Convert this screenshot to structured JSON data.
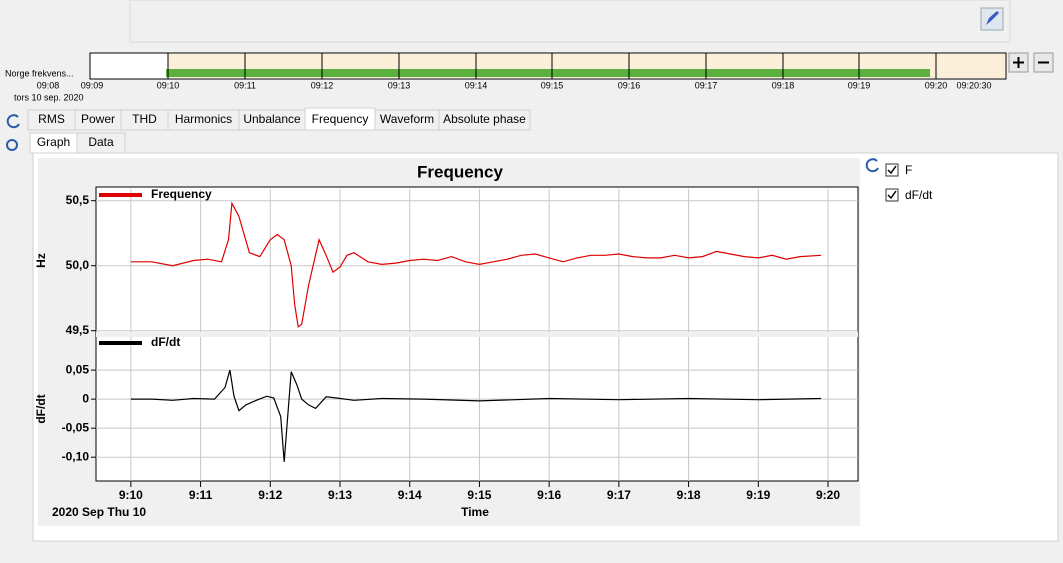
{
  "timeline": {
    "label": "Norge  frekvens...",
    "date": "tors 10 sep. 2020",
    "ticks": [
      "09:08",
      "09:09",
      "09:10",
      "09:11",
      "09:12",
      "09:13",
      "09:14",
      "09:15",
      "09:16",
      "09:17",
      "09:18",
      "09:19",
      "09:20",
      "09:20:30"
    ]
  },
  "tabs": [
    "RMS",
    "Power",
    "THD",
    "Harmonics",
    "Unbalance",
    "Frequency",
    "Waveform",
    "Absolute phase"
  ],
  "subtabs": [
    "Graph",
    "Data"
  ],
  "title": "Frequency",
  "x_label": "Time",
  "date_label": "2020 Sep Thu 10",
  "checkboxes": [
    "F",
    "dF/dt"
  ],
  "chart_data": [
    {
      "type": "line",
      "y_label": "Hz",
      "grid": true,
      "x": [
        550.0,
        550.3,
        550.6,
        550.9,
        551.1,
        551.3,
        551.4,
        551.45,
        551.55,
        551.7,
        551.85,
        552.0,
        552.1,
        552.2,
        552.3,
        552.35,
        552.4,
        552.45,
        552.55,
        552.7,
        552.8,
        552.9,
        553.0,
        553.1,
        553.2,
        553.4,
        553.6,
        553.8,
        554.0,
        554.2,
        554.4,
        554.6,
        554.8,
        555.0,
        555.2,
        555.4,
        555.6,
        555.8,
        556.0,
        556.2,
        556.4,
        556.6,
        556.8,
        557.0,
        557.2,
        557.4,
        557.6,
        557.8,
        558.0,
        558.2,
        558.4,
        558.6,
        558.8,
        559.0,
        559.2,
        559.4,
        559.6,
        559.9
      ],
      "series": [
        {
          "name": "Frequency",
          "color": "#e00000",
          "values": [
            50.03,
            50.03,
            50.0,
            50.04,
            50.05,
            50.03,
            50.2,
            50.48,
            50.38,
            50.1,
            50.07,
            50.2,
            50.24,
            50.2,
            50.0,
            49.7,
            49.53,
            49.55,
            49.85,
            50.2,
            50.08,
            49.95,
            49.99,
            50.08,
            50.1,
            50.03,
            50.01,
            50.02,
            50.04,
            50.05,
            50.04,
            50.07,
            50.03,
            50.01,
            50.03,
            50.05,
            50.08,
            50.09,
            50.06,
            50.03,
            50.06,
            50.08,
            50.08,
            50.09,
            50.07,
            50.06,
            50.06,
            50.08,
            50.06,
            50.07,
            50.11,
            50.09,
            50.07,
            50.06,
            50.08,
            50.05,
            50.07,
            50.08
          ]
        }
      ],
      "xlim": [
        549.5,
        560.43
      ],
      "ylim": [
        49.49,
        50.59
      ],
      "yticks": [
        {
          "value": 49.5,
          "label": "49,5"
        },
        {
          "value": 50,
          "label": "50,0"
        },
        {
          "value": 50.5,
          "label": "50,5"
        }
      ]
    },
    {
      "type": "line",
      "y_label": "dF/dt",
      "grid": true,
      "x": [
        550.0,
        550.3,
        550.6,
        550.9,
        551.2,
        551.35,
        551.42,
        551.48,
        551.55,
        551.65,
        551.8,
        551.95,
        552.05,
        552.15,
        552.2,
        552.25,
        552.3,
        552.38,
        552.45,
        552.55,
        552.65,
        552.8,
        552.95,
        553.2,
        553.6,
        554.2,
        555.0,
        556.0,
        557.0,
        558.0,
        559.0,
        559.9
      ],
      "series": [
        {
          "name": "dF/dt",
          "color": "#000000",
          "values": [
            0,
            0,
            -0.002,
            0.001,
            0,
            0.02,
            0.05,
            0.005,
            -0.02,
            -0.01,
            -0.002,
            0.005,
            0.002,
            -0.03,
            -0.108,
            -0.03,
            0.047,
            0.025,
            0,
            -0.01,
            -0.016,
            0.004,
            0.002,
            -0.002,
            0.001,
            0,
            -0.003,
            0.001,
            -0.001,
            0.001,
            -0.001,
            0.001
          ]
        }
      ],
      "xlim": [
        549.5,
        560.43
      ],
      "xticks": [
        {
          "value": 550,
          "label": "9:10"
        },
        {
          "value": 551,
          "label": "9:11"
        },
        {
          "value": 552,
          "label": "9:12"
        },
        {
          "value": 553,
          "label": "9:13"
        },
        {
          "value": 554,
          "label": "9:14"
        },
        {
          "value": 555,
          "label": "9:15"
        },
        {
          "value": 556,
          "label": "9:16"
        },
        {
          "value": 557,
          "label": "9:17"
        },
        {
          "value": 558,
          "label": "9:18"
        },
        {
          "value": 559,
          "label": "9:19"
        },
        {
          "value": 560,
          "label": "9:20"
        }
      ],
      "ylim": [
        -0.141,
        0.107
      ],
      "yticks": [
        {
          "value": -0.1,
          "label": "-0,10"
        },
        {
          "value": -0.05,
          "label": "-0,05"
        },
        0,
        {
          "value": 0.05,
          "label": "0,05"
        }
      ]
    }
  ]
}
